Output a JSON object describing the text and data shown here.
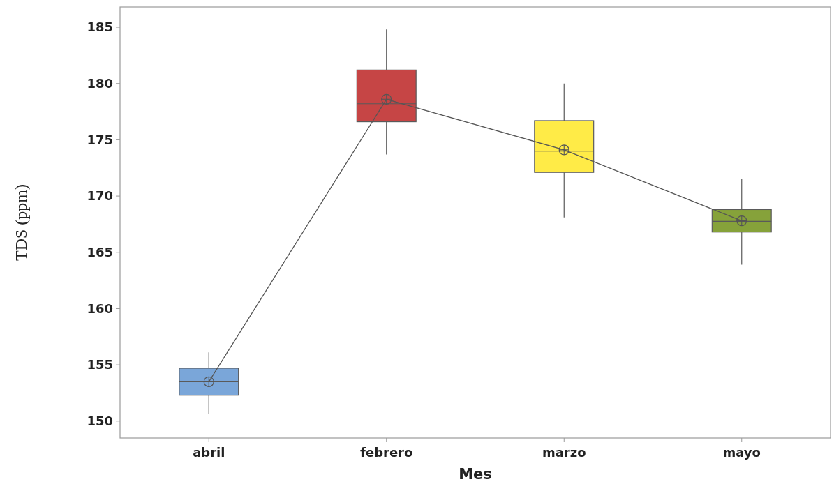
{
  "chart_data": {
    "type": "box",
    "xlabel": "Mes",
    "ylabel": "TDS (ppm)",
    "categories": [
      "abril",
      "febrero",
      "marzo",
      "mayo"
    ],
    "colors": [
      "#7aa6d9",
      "#c64545",
      "#ffeb47",
      "#86a23a"
    ],
    "boxes": [
      {
        "low": 150.6,
        "q1": 152.3,
        "median": 153.5,
        "q3": 154.7,
        "high": 156.1
      },
      {
        "low": 173.7,
        "q1": 176.6,
        "median": 178.2,
        "q3": 181.2,
        "high": 184.8
      },
      {
        "low": 168.1,
        "q1": 172.1,
        "median": 174.0,
        "q3": 176.7,
        "high": 180.0
      },
      {
        "low": 163.9,
        "q1": 166.8,
        "median": 167.75,
        "q3": 168.8,
        "high": 171.5
      }
    ],
    "series": [
      {
        "type": "line",
        "values": [
          153.5,
          178.6,
          174.1,
          167.8
        ],
        "color": "#555555",
        "marker": "circle"
      }
    ],
    "ylim": [
      148.5,
      186.8
    ],
    "yticks": [
      150,
      155,
      160,
      165,
      170,
      175,
      180,
      185
    ],
    "grid": false
  }
}
